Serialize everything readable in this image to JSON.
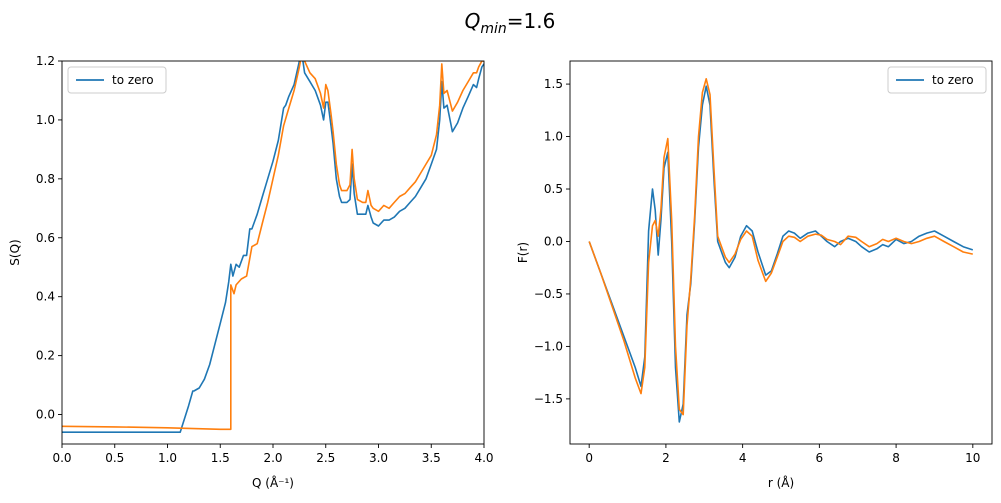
{
  "figure": {
    "title_main": "Q",
    "title_sub": "min",
    "title_rest": "=1.6"
  },
  "colors": {
    "series1": "#1f77b4",
    "series2": "#ff7f0e"
  },
  "chart_data": [
    {
      "type": "line",
      "xlabel": "Q (Å⁻¹)",
      "ylabel": "S(Q)",
      "xlim": [
        0.0,
        4.0
      ],
      "ylim": [
        -0.1,
        1.2
      ],
      "xticks": [
        0.0,
        0.5,
        1.0,
        1.5,
        2.0,
        2.5,
        3.0,
        3.5,
        4.0
      ],
      "xtick_labels": [
        "0.0",
        "0.5",
        "1.0",
        "1.5",
        "2.0",
        "2.5",
        "3.0",
        "3.5",
        "4.0"
      ],
      "yticks": [
        0.0,
        0.2,
        0.4,
        0.6,
        0.8,
        1.0,
        1.2
      ],
      "ytick_labels": [
        "0.0",
        "0.2",
        "0.4",
        "0.6",
        "0.8",
        "1.0",
        "1.2"
      ],
      "legend": {
        "position": "upper left",
        "entries": [
          "to zero"
        ]
      },
      "series": [
        {
          "name": "to zero",
          "color": "#1f77b4",
          "x": [
            0.0,
            1.12,
            1.2,
            1.24,
            1.25,
            1.3,
            1.35,
            1.4,
            1.45,
            1.5,
            1.55,
            1.58,
            1.6,
            1.62,
            1.65,
            1.68,
            1.72,
            1.75,
            1.78,
            1.8,
            1.85,
            1.9,
            1.95,
            2.0,
            2.05,
            2.1,
            2.12,
            2.15,
            2.2,
            2.25,
            2.28,
            2.3,
            2.35,
            2.4,
            2.45,
            2.48,
            2.5,
            2.52,
            2.55,
            2.57,
            2.6,
            2.63,
            2.65,
            2.7,
            2.73,
            2.75,
            2.77,
            2.8,
            2.85,
            2.88,
            2.9,
            2.93,
            2.95,
            3.0,
            3.05,
            3.1,
            3.15,
            3.2,
            3.25,
            3.3,
            3.35,
            3.4,
            3.45,
            3.5,
            3.55,
            3.58,
            3.6,
            3.62,
            3.65,
            3.7,
            3.75,
            3.8,
            3.85,
            3.9,
            3.93,
            3.95,
            3.98,
            4.0
          ],
          "y": [
            -0.06,
            -0.06,
            0.03,
            0.08,
            0.08,
            0.09,
            0.12,
            0.17,
            0.24,
            0.31,
            0.38,
            0.45,
            0.51,
            0.47,
            0.51,
            0.5,
            0.54,
            0.54,
            0.63,
            0.63,
            0.68,
            0.74,
            0.8,
            0.86,
            0.93,
            1.04,
            1.05,
            1.08,
            1.12,
            1.2,
            1.21,
            1.16,
            1.13,
            1.1,
            1.05,
            1.0,
            1.06,
            1.06,
            0.98,
            0.92,
            0.8,
            0.74,
            0.72,
            0.72,
            0.73,
            0.85,
            0.75,
            0.68,
            0.68,
            0.68,
            0.71,
            0.67,
            0.65,
            0.64,
            0.66,
            0.66,
            0.67,
            0.69,
            0.7,
            0.72,
            0.74,
            0.77,
            0.8,
            0.85,
            0.9,
            1.0,
            1.13,
            1.04,
            1.05,
            0.96,
            0.99,
            1.04,
            1.08,
            1.12,
            1.11,
            1.14,
            1.18,
            1.19
          ]
        },
        {
          "name": "",
          "color": "#ff7f0e",
          "x": [
            0.0,
            0.5,
            1.0,
            1.5,
            1.6,
            1.6,
            1.63,
            1.65,
            1.7,
            1.75,
            1.8,
            1.85,
            1.9,
            1.95,
            2.0,
            2.05,
            2.1,
            2.15,
            2.2,
            2.25,
            2.27,
            2.3,
            2.35,
            2.4,
            2.45,
            2.48,
            2.5,
            2.52,
            2.55,
            2.57,
            2.6,
            2.63,
            2.65,
            2.7,
            2.73,
            2.75,
            2.77,
            2.8,
            2.85,
            2.88,
            2.9,
            2.93,
            2.95,
            3.0,
            3.05,
            3.1,
            3.15,
            3.2,
            3.25,
            3.3,
            3.35,
            3.4,
            3.45,
            3.5,
            3.55,
            3.58,
            3.6,
            3.62,
            3.65,
            3.7,
            3.75,
            3.8,
            3.85,
            3.9,
            3.93,
            3.95,
            3.98,
            4.0
          ],
          "y": [
            -0.04,
            -0.042,
            -0.045,
            -0.05,
            -0.05,
            0.44,
            0.41,
            0.44,
            0.46,
            0.47,
            0.57,
            0.58,
            0.65,
            0.72,
            0.8,
            0.88,
            0.98,
            1.04,
            1.1,
            1.18,
            1.22,
            1.2,
            1.16,
            1.14,
            1.09,
            1.04,
            1.12,
            1.1,
            1.02,
            0.96,
            0.85,
            0.78,
            0.76,
            0.76,
            0.78,
            0.9,
            0.8,
            0.73,
            0.72,
            0.72,
            0.76,
            0.71,
            0.7,
            0.69,
            0.71,
            0.7,
            0.72,
            0.74,
            0.75,
            0.77,
            0.79,
            0.82,
            0.85,
            0.88,
            0.95,
            1.05,
            1.19,
            1.09,
            1.1,
            1.03,
            1.06,
            1.1,
            1.13,
            1.16,
            1.16,
            1.18,
            1.2,
            1.2
          ]
        }
      ]
    },
    {
      "type": "line",
      "xlabel": "r (Å)",
      "ylabel": "F(r)",
      "xlim": [
        -0.5,
        10.5
      ],
      "ylim": [
        -1.93,
        1.72
      ],
      "xticks": [
        0,
        2,
        4,
        6,
        8,
        10
      ],
      "xtick_labels": [
        "0",
        "2",
        "4",
        "6",
        "8",
        "10"
      ],
      "yticks": [
        -1.5,
        -1.0,
        -0.5,
        0.0,
        0.5,
        1.0,
        1.5
      ],
      "ytick_labels": [
        "−1.5",
        "−1.0",
        "−0.5",
        "0.0",
        "0.5",
        "1.0",
        "1.5"
      ],
      "legend": {
        "position": "upper right",
        "entries": [
          "to zero"
        ]
      },
      "series": [
        {
          "name": "to zero",
          "color": "#1f77b4",
          "x": [
            0.0,
            0.3,
            0.6,
            0.9,
            1.2,
            1.35,
            1.45,
            1.55,
            1.65,
            1.72,
            1.8,
            1.87,
            1.95,
            2.05,
            2.15,
            2.25,
            2.35,
            2.45,
            2.55,
            2.65,
            2.75,
            2.85,
            2.95,
            3.05,
            3.15,
            3.25,
            3.35,
            3.45,
            3.55,
            3.65,
            3.8,
            3.95,
            4.1,
            4.25,
            4.4,
            4.6,
            4.75,
            4.9,
            5.05,
            5.2,
            5.35,
            5.5,
            5.7,
            5.9,
            6.05,
            6.2,
            6.4,
            6.55,
            6.75,
            6.95,
            7.1,
            7.3,
            7.5,
            7.65,
            7.8,
            8.0,
            8.2,
            8.4,
            8.6,
            8.8,
            9.0,
            9.25,
            9.5,
            9.75,
            10.0
          ],
          "y": [
            0.0,
            -0.3,
            -0.6,
            -0.9,
            -1.2,
            -1.38,
            -1.1,
            0.1,
            0.5,
            0.3,
            -0.13,
            0.2,
            0.7,
            0.85,
            0.0,
            -1.2,
            -1.72,
            -1.55,
            -0.7,
            -0.4,
            0.2,
            0.9,
            1.3,
            1.48,
            1.3,
            0.6,
            0.0,
            -0.1,
            -0.2,
            -0.25,
            -0.15,
            0.05,
            0.15,
            0.1,
            -0.1,
            -0.32,
            -0.28,
            -0.12,
            0.05,
            0.1,
            0.08,
            0.03,
            0.08,
            0.1,
            0.05,
            0.0,
            -0.05,
            0.0,
            0.03,
            0.0,
            -0.05,
            -0.1,
            -0.07,
            -0.03,
            -0.05,
            0.02,
            -0.02,
            0.0,
            0.05,
            0.08,
            0.1,
            0.05,
            0.0,
            -0.05,
            -0.08
          ]
        },
        {
          "name": "",
          "color": "#ff7f0e",
          "x": [
            0.0,
            0.3,
            0.6,
            0.9,
            1.2,
            1.35,
            1.45,
            1.55,
            1.65,
            1.72,
            1.8,
            1.87,
            1.95,
            2.05,
            2.15,
            2.25,
            2.35,
            2.45,
            2.55,
            2.65,
            2.75,
            2.85,
            2.95,
            3.05,
            3.15,
            3.25,
            3.35,
            3.45,
            3.55,
            3.65,
            3.8,
            3.95,
            4.1,
            4.25,
            4.4,
            4.6,
            4.75,
            4.9,
            5.05,
            5.2,
            5.35,
            5.5,
            5.7,
            5.9,
            6.05,
            6.2,
            6.4,
            6.55,
            6.75,
            6.95,
            7.1,
            7.3,
            7.5,
            7.65,
            7.8,
            8.0,
            8.2,
            8.4,
            8.6,
            8.8,
            9.0,
            9.25,
            9.5,
            9.75,
            10.0
          ],
          "y": [
            0.0,
            -0.3,
            -0.62,
            -0.94,
            -1.3,
            -1.45,
            -1.2,
            -0.2,
            0.15,
            0.2,
            0.05,
            0.3,
            0.8,
            0.98,
            0.2,
            -1.0,
            -1.6,
            -1.65,
            -0.8,
            -0.35,
            0.25,
            1.0,
            1.42,
            1.55,
            1.4,
            0.7,
            0.05,
            -0.05,
            -0.15,
            -0.2,
            -0.12,
            0.02,
            0.1,
            0.05,
            -0.18,
            -0.38,
            -0.3,
            -0.15,
            0.0,
            0.05,
            0.04,
            0.0,
            0.05,
            0.07,
            0.06,
            0.02,
            0.0,
            -0.03,
            0.05,
            0.04,
            0.0,
            -0.05,
            -0.02,
            0.02,
            0.0,
            0.03,
            0.0,
            -0.02,
            0.0,
            0.03,
            0.05,
            0.0,
            -0.05,
            -0.1,
            -0.12
          ]
        }
      ]
    }
  ]
}
